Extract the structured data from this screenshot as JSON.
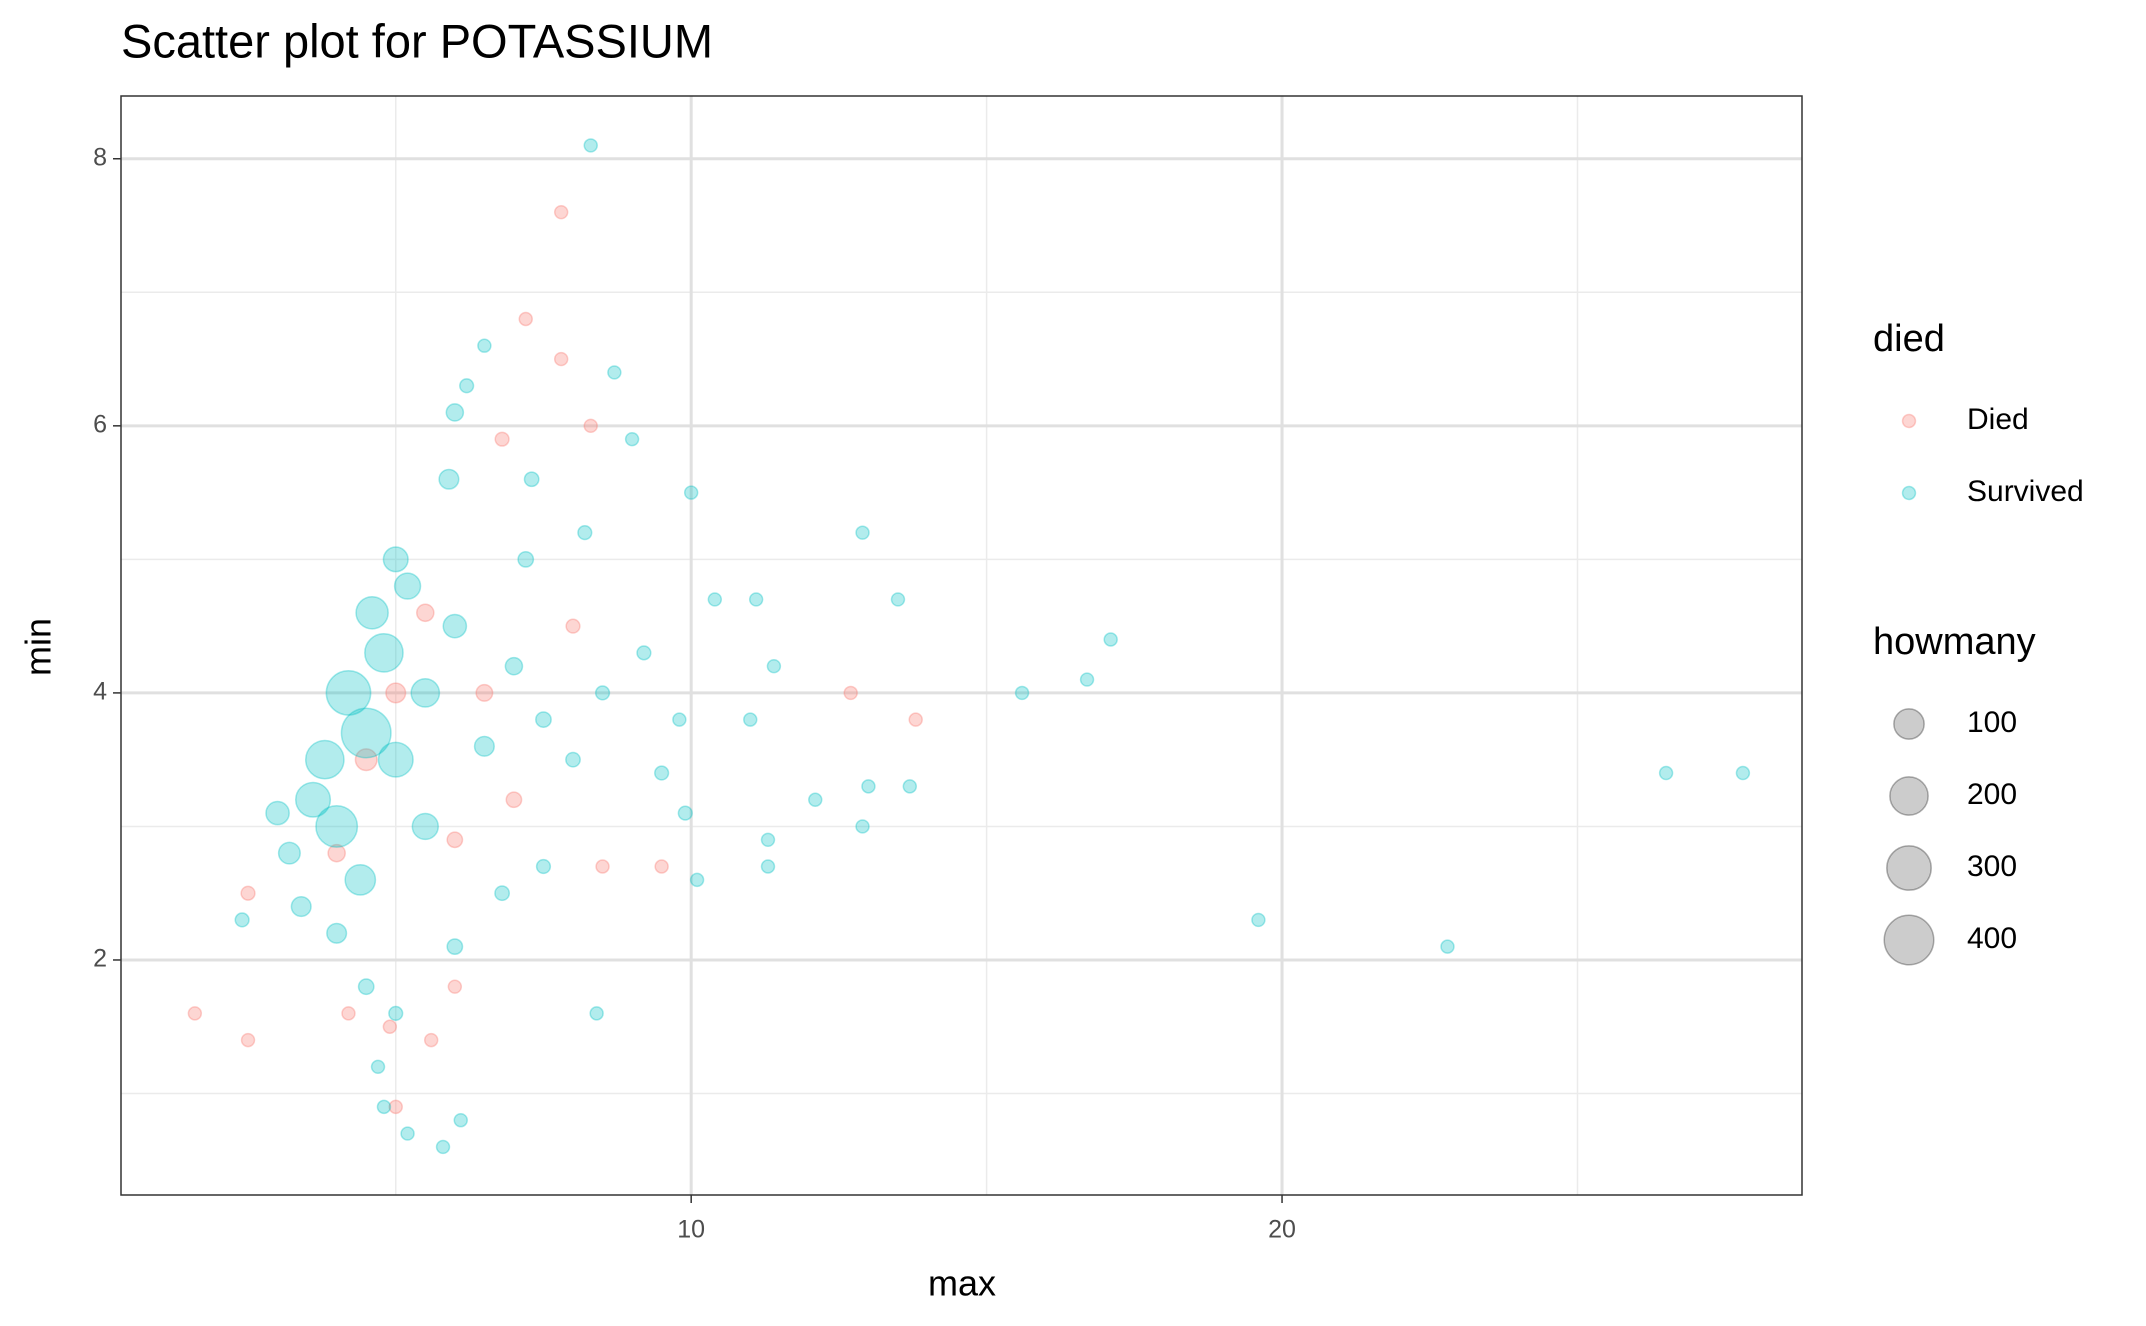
{
  "chart_data": {
    "type": "scatter",
    "title": "Scatter plot for POTASSIUM",
    "x_label": "max",
    "y_label": "min",
    "xlim": [
      0.35,
      28.8
    ],
    "ylim": [
      0.24,
      8.47
    ],
    "xticks": [
      10,
      20
    ],
    "yticks": [
      2,
      4,
      6,
      8
    ],
    "xminor": [
      5,
      15,
      25
    ],
    "yminor": [
      1,
      3,
      5,
      7
    ],
    "grid": true,
    "legend_position": "right",
    "color_legend_title": "died",
    "size_legend_title": "howmany",
    "size_legend": [
      100,
      200,
      300,
      400
    ],
    "series": [
      {
        "name": "Died",
        "color": "#F8766D",
        "x": [
          1.6,
          2.5,
          7.8,
          7.2,
          7.8,
          12.7,
          13.8,
          9.5,
          4.2,
          4.9,
          5.0,
          5.6,
          6.0,
          2.5,
          8.3,
          4.5,
          5.0,
          5.5,
          6.5,
          7.0,
          8.0,
          8.5,
          6.8,
          4.0,
          6.0
        ],
        "y": [
          1.6,
          1.4,
          7.6,
          6.8,
          6.5,
          4.0,
          3.8,
          2.7,
          1.6,
          1.5,
          0.9,
          1.4,
          1.8,
          2.5,
          6.0,
          3.5,
          4.0,
          4.6,
          4.0,
          3.2,
          4.5,
          2.7,
          5.9,
          2.8,
          2.9
        ],
        "size": [
          1,
          1,
          1,
          1,
          1,
          1,
          1,
          1,
          1,
          1,
          1,
          1,
          1,
          2,
          1,
          30,
          20,
          10,
          8,
          5,
          2,
          1,
          2,
          10,
          5
        ]
      },
      {
        "name": "Survived",
        "color": "#00BFC4",
        "x": [
          8.3,
          27.8,
          26.5,
          22.8,
          19.6,
          17.1,
          16.7,
          15.6,
          13.5,
          12.9,
          13.7,
          13.0,
          12.9,
          12.1,
          11.4,
          11.1,
          11.3,
          11.3,
          11.0,
          10.4,
          10.0,
          10.1,
          9.9,
          8.7,
          9.0,
          6.5,
          5.8,
          6.1,
          5.2,
          4.8,
          8.4,
          2.4,
          6.0,
          5.9,
          3.2,
          3.8,
          4.2,
          4.5,
          4.0,
          3.6,
          4.8,
          5.0,
          5.5,
          5.5,
          4.4,
          4.6,
          5.2,
          6.0,
          6.5,
          7.0,
          7.5,
          8.0,
          8.5,
          9.2,
          9.5,
          9.8,
          7.2,
          8.2,
          3.4,
          4.0,
          4.5,
          5.0,
          4.7,
          6.0,
          6.8,
          7.5,
          7.3,
          6.2,
          5.0,
          3.0
        ],
        "y": [
          8.1,
          3.4,
          3.4,
          2.1,
          2.3,
          4.4,
          4.1,
          4.0,
          4.7,
          5.2,
          3.3,
          3.3,
          3.0,
          3.2,
          4.2,
          4.7,
          2.9,
          2.7,
          3.8,
          4.7,
          5.5,
          2.6,
          3.1,
          6.4,
          5.9,
          6.6,
          0.6,
          0.8,
          0.7,
          0.9,
          1.6,
          2.3,
          6.1,
          5.6,
          2.8,
          3.5,
          4.0,
          3.7,
          3.0,
          3.2,
          4.3,
          3.5,
          4.0,
          3.0,
          2.6,
          4.6,
          4.8,
          4.5,
          3.6,
          4.2,
          3.8,
          3.5,
          4.0,
          4.3,
          3.4,
          3.8,
          5.0,
          5.2,
          2.4,
          2.2,
          1.8,
          1.6,
          1.2,
          2.1,
          2.5,
          2.7,
          5.6,
          6.3,
          5.0,
          3.1
        ],
        "size": [
          1,
          1,
          1,
          1,
          1,
          1,
          1,
          1,
          1,
          1,
          1,
          1,
          1,
          1,
          1,
          1,
          1,
          1,
          1,
          1,
          1,
          1,
          2,
          1,
          1,
          1,
          1,
          1,
          1,
          1,
          1,
          2,
          10,
          20,
          30,
          200,
          300,
          400,
          250,
          150,
          200,
          150,
          80,
          60,
          100,
          120,
          60,
          40,
          20,
          10,
          5,
          3,
          2,
          2,
          2,
          1,
          5,
          2,
          20,
          20,
          5,
          2,
          1,
          5,
          3,
          2,
          3,
          2,
          50,
          40
        ]
      }
    ]
  }
}
